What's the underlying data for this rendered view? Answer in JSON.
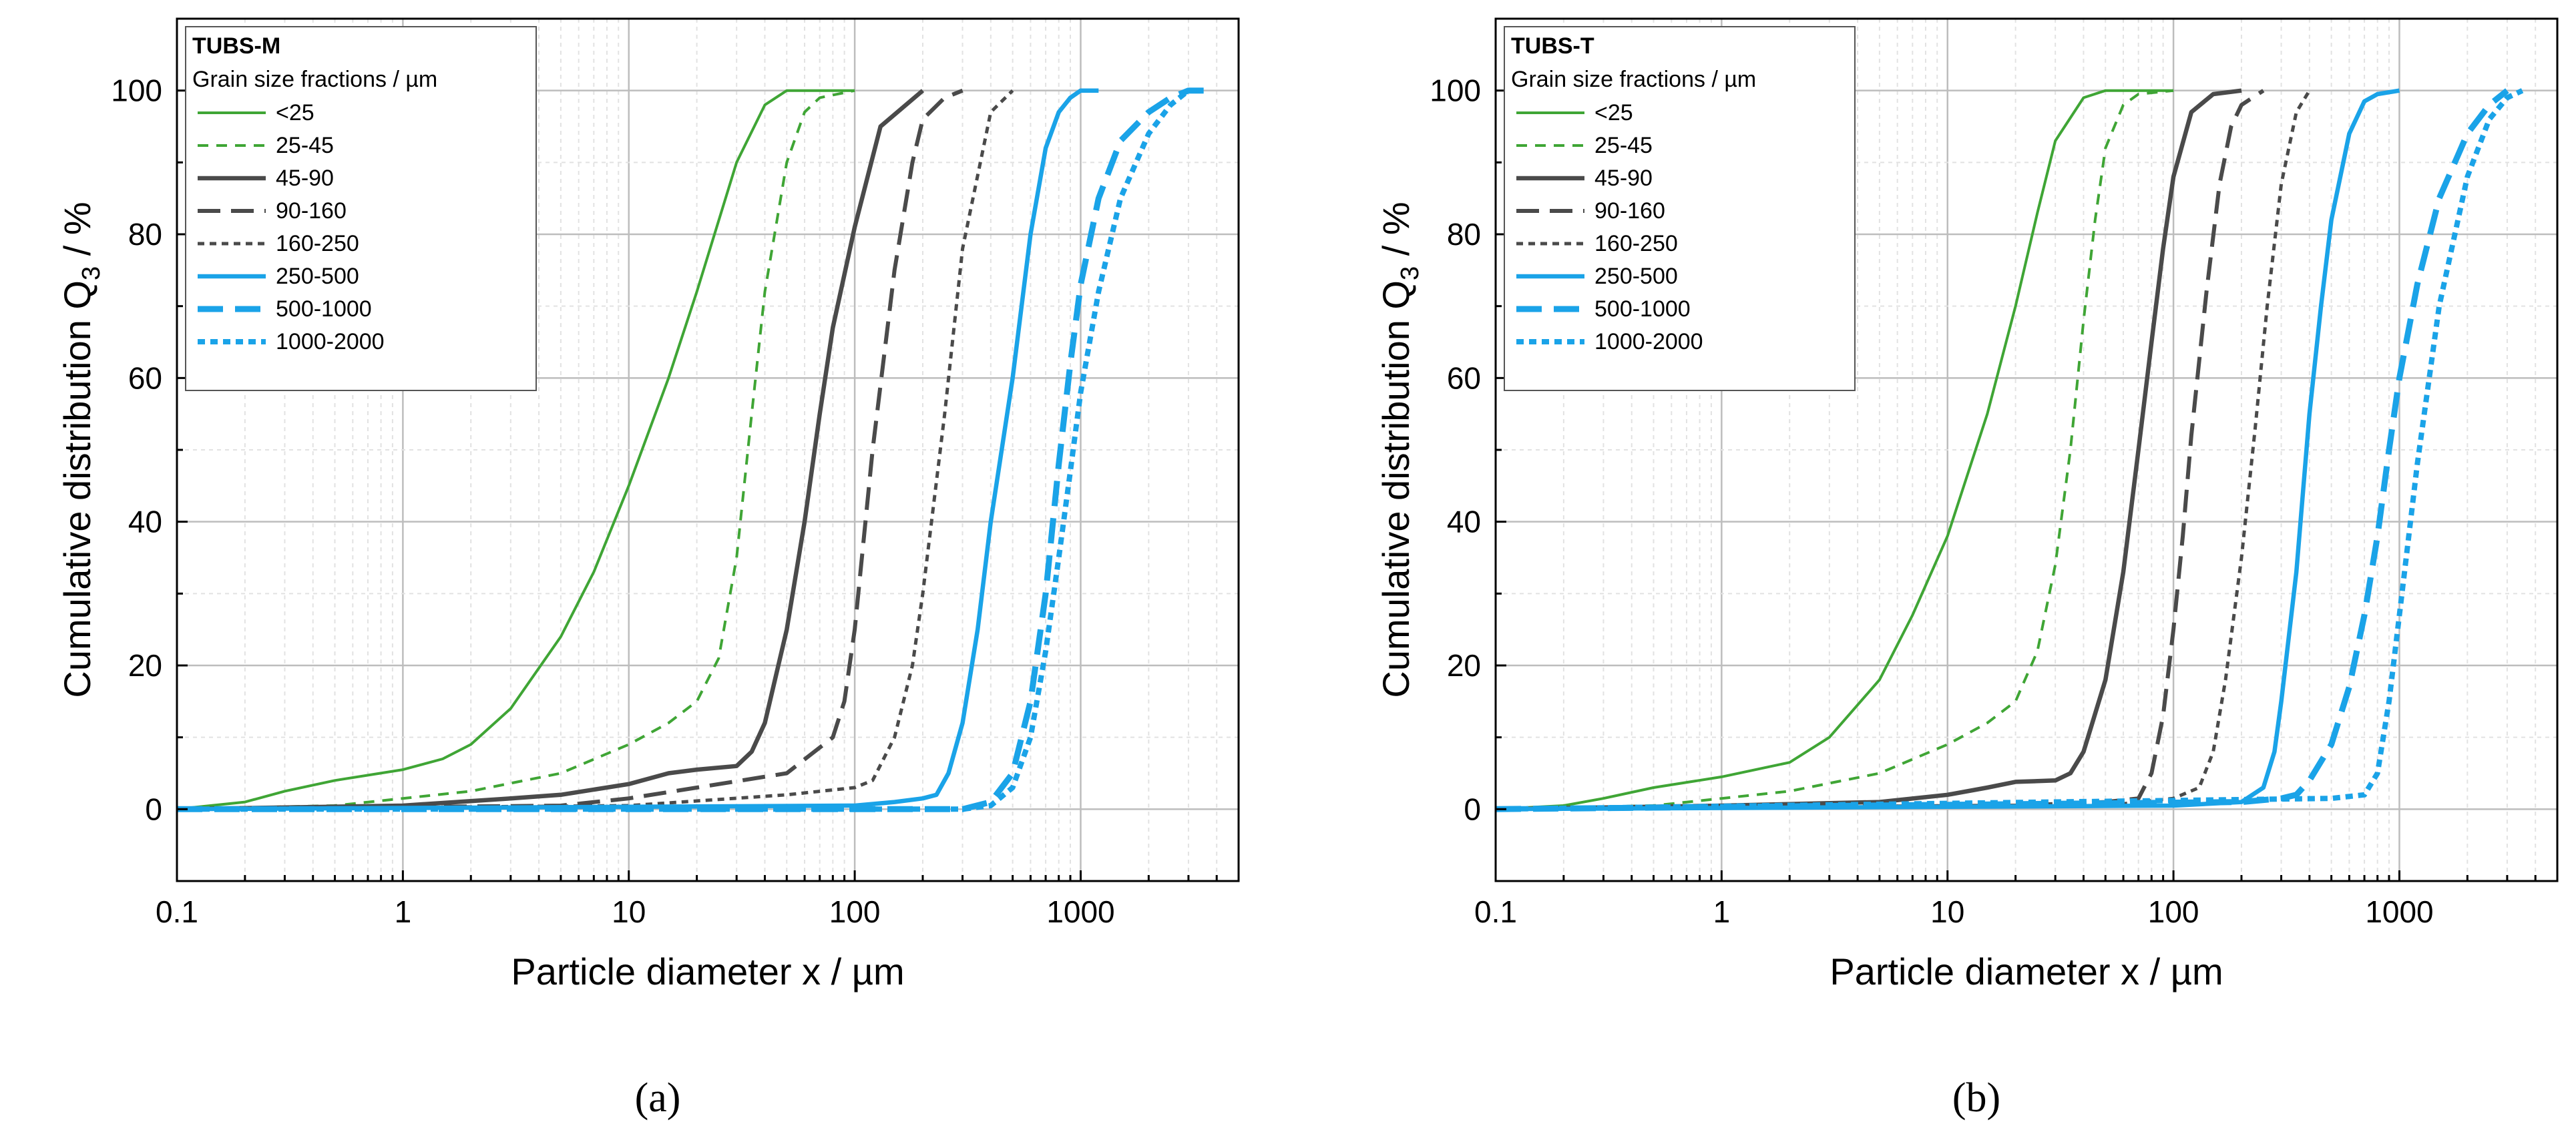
{
  "chart_data": [
    {
      "type": "line",
      "panel_label": "(a)",
      "xlabel": "Particle diameter x / µm",
      "ylabel": "Cumulative distribution Q",
      "ylabel_sub": "3",
      "ylabel_unit": " / %",
      "xscale": "log",
      "xlim": [
        0.1,
        5000
      ],
      "ylim": [
        -10,
        110
      ],
      "xticks": [
        0.1,
        1,
        10,
        100,
        1000
      ],
      "xtick_labels": [
        "0.1",
        "1",
        "10",
        "100",
        "1000"
      ],
      "yticks": [
        0,
        20,
        40,
        60,
        80,
        100
      ],
      "ytick_labels": [
        "0",
        "20",
        "40",
        "60",
        "80",
        "100"
      ],
      "grid": true,
      "legend": {
        "position": "top-left",
        "title": "TUBS-M",
        "subtitle": "Grain size fractions / µm"
      },
      "series": [
        {
          "name": "<25",
          "color": "#3fa535",
          "style": "solid-thin",
          "x": [
            0.1,
            0.2,
            0.3,
            0.5,
            1,
            1.5,
            2,
            3,
            5,
            7,
            10,
            15,
            20,
            30,
            40,
            50,
            60,
            100
          ],
          "y": [
            0,
            1,
            2.5,
            4,
            5.5,
            7,
            9,
            14,
            24,
            33,
            45,
            60,
            72,
            90,
            98,
            100,
            100,
            100
          ]
        },
        {
          "name": "25-45",
          "color": "#3fa535",
          "style": "dashed-thin",
          "x": [
            0.1,
            0.5,
            1,
            2,
            5,
            10,
            15,
            20,
            25,
            30,
            35,
            40,
            50,
            60,
            70,
            100
          ],
          "y": [
            0,
            0.5,
            1.5,
            2.5,
            5,
            9,
            12,
            15,
            21,
            35,
            55,
            72,
            90,
            97,
            99,
            100
          ]
        },
        {
          "name": "45-90",
          "color": "#4a4a4a",
          "style": "solid-thick",
          "x": [
            0.1,
            1,
            3,
            5,
            10,
            15,
            20,
            30,
            35,
            40,
            50,
            60,
            70,
            80,
            100,
            130,
            200
          ],
          "y": [
            0,
            0.5,
            1.5,
            2,
            3.5,
            5,
            5.5,
            6,
            8,
            12,
            25,
            40,
            55,
            67,
            81,
            95,
            100
          ]
        },
        {
          "name": "90-160",
          "color": "#4a4a4a",
          "style": "dashed-long",
          "x": [
            0.1,
            5,
            10,
            20,
            50,
            80,
            90,
            100,
            120,
            150,
            180,
            200,
            250,
            300
          ],
          "y": [
            0,
            0.5,
            1.5,
            3,
            5,
            10,
            15,
            25,
            50,
            75,
            90,
            96,
            99,
            100
          ]
        },
        {
          "name": "160-250",
          "color": "#4a4a4a",
          "style": "dotted",
          "x": [
            0.1,
            10,
            50,
            100,
            120,
            150,
            180,
            200,
            250,
            300,
            400,
            500
          ],
          "y": [
            0,
            0.5,
            2,
            3,
            4,
            10,
            20,
            30,
            55,
            78,
            97,
            100
          ]
        },
        {
          "name": "250-500",
          "color": "#1aa3e8",
          "style": "solid-thick",
          "x": [
            0.1,
            100,
            150,
            200,
            230,
            260,
            300,
            350,
            400,
            500,
            600,
            700,
            800,
            900,
            1000,
            1200
          ],
          "y": [
            0,
            0.5,
            1,
            1.5,
            2,
            5,
            12,
            25,
            40,
            60,
            80,
            92,
            97,
            99,
            100,
            100
          ]
        },
        {
          "name": "500-1000",
          "color": "#1aa3e8",
          "style": "dashed-long-thick",
          "x": [
            0.1,
            300,
            400,
            500,
            600,
            700,
            800,
            900,
            1000,
            1200,
            1500,
            2000,
            2500,
            3000,
            3500
          ],
          "y": [
            0,
            0,
            1,
            5,
            15,
            30,
            48,
            62,
            73,
            85,
            93,
            97,
            99,
            100,
            100
          ]
        },
        {
          "name": "1000-2000",
          "color": "#1aa3e8",
          "style": "dotted-thick",
          "x": [
            0.1,
            300,
            400,
            500,
            600,
            700,
            800,
            900,
            1000,
            1200,
            1500,
            2000,
            2500,
            3000,
            3500
          ],
          "y": [
            0,
            0,
            0.5,
            3,
            10,
            22,
            35,
            47,
            58,
            72,
            85,
            94,
            98,
            100,
            100
          ]
        }
      ]
    },
    {
      "type": "line",
      "panel_label": "(b)",
      "xlabel": "Particle diameter x / µm",
      "ylabel": "Cumulative distribution Q",
      "ylabel_sub": "3",
      "ylabel_unit": " / %",
      "xscale": "log",
      "xlim": [
        0.1,
        5000
      ],
      "ylim": [
        -10,
        110
      ],
      "xticks": [
        0.1,
        1,
        10,
        100,
        1000
      ],
      "xtick_labels": [
        "0.1",
        "1",
        "10",
        "100",
        "1000"
      ],
      "yticks": [
        0,
        20,
        40,
        60,
        80,
        100
      ],
      "ytick_labels": [
        "0",
        "20",
        "40",
        "60",
        "80",
        "100"
      ],
      "grid": true,
      "legend": {
        "position": "top-left",
        "title": "TUBS-T",
        "subtitle": "Grain size fractions / µm"
      },
      "series": [
        {
          "name": "<25",
          "color": "#3fa535",
          "style": "solid-thin",
          "x": [
            0.1,
            0.2,
            0.3,
            0.5,
            1,
            2,
            3,
            5,
            7,
            10,
            15,
            20,
            25,
            30,
            40,
            50,
            60,
            100
          ],
          "y": [
            0,
            0.5,
            1.5,
            3,
            4.5,
            6.5,
            10,
            18,
            27,
            38,
            55,
            70,
            83,
            93,
            99,
            100,
            100,
            100
          ]
        },
        {
          "name": "25-45",
          "color": "#3fa535",
          "style": "dashed-thin",
          "x": [
            0.1,
            0.5,
            1,
            2,
            5,
            10,
            15,
            20,
            25,
            30,
            35,
            40,
            45,
            50,
            60,
            70,
            100
          ],
          "y": [
            0,
            0.5,
            1.5,
            2.5,
            5,
            9,
            12,
            15,
            22,
            34,
            50,
            68,
            82,
            92,
            98,
            99.5,
            100
          ]
        },
        {
          "name": "45-90",
          "color": "#4a4a4a",
          "style": "solid-thick",
          "x": [
            0.1,
            1,
            5,
            10,
            15,
            20,
            30,
            35,
            40,
            50,
            60,
            70,
            80,
            90,
            100,
            120,
            150,
            200
          ],
          "y": [
            0,
            0.5,
            1,
            2,
            3,
            3.8,
            4,
            5,
            8,
            18,
            33,
            50,
            65,
            78,
            88,
            97,
            99.5,
            100
          ]
        },
        {
          "name": "90-160",
          "color": "#4a4a4a",
          "style": "dashed-long",
          "x": [
            0.1,
            20,
            50,
            70,
            80,
            90,
            100,
            110,
            120,
            140,
            160,
            180,
            200,
            250
          ],
          "y": [
            0,
            0.5,
            1,
            1.5,
            5,
            13,
            25,
            38,
            52,
            72,
            87,
            95,
            98,
            100
          ]
        },
        {
          "name": "160-250",
          "color": "#4a4a4a",
          "style": "dotted",
          "x": [
            0.1,
            50,
            100,
            130,
            150,
            170,
            200,
            230,
            260,
            300,
            350,
            400
          ],
          "y": [
            0,
            0.5,
            1.5,
            3,
            8,
            18,
            35,
            53,
            70,
            87,
            97,
            100
          ]
        },
        {
          "name": "250-500",
          "color": "#1aa3e8",
          "style": "solid-thick",
          "x": [
            0.1,
            100,
            200,
            250,
            280,
            300,
            350,
            400,
            450,
            500,
            600,
            700,
            800,
            1000
          ],
          "y": [
            0,
            0.5,
            1,
            3,
            8,
            15,
            33,
            55,
            70,
            82,
            94,
            98.5,
            99.5,
            100
          ]
        },
        {
          "name": "500-1000",
          "color": "#1aa3e8",
          "style": "dashed-long-thick",
          "x": [
            0.1,
            200,
            300,
            350,
            400,
            500,
            600,
            700,
            800,
            900,
            1000,
            1200,
            1500,
            2000,
            2500,
            3000
          ],
          "y": [
            0,
            1,
            1.5,
            2,
            4,
            9,
            17,
            27,
            38,
            50,
            60,
            73,
            85,
            94,
            98,
            100
          ]
        },
        {
          "name": "1000-2000",
          "color": "#1aa3e8",
          "style": "dotted-thick",
          "x": [
            0.1,
            500,
            700,
            800,
            900,
            1000,
            1200,
            1500,
            2000,
            2500,
            3000,
            3500
          ],
          "y": [
            0,
            1.5,
            2,
            5,
            15,
            27,
            48,
            70,
            88,
            96,
            99,
            100
          ]
        }
      ]
    }
  ]
}
